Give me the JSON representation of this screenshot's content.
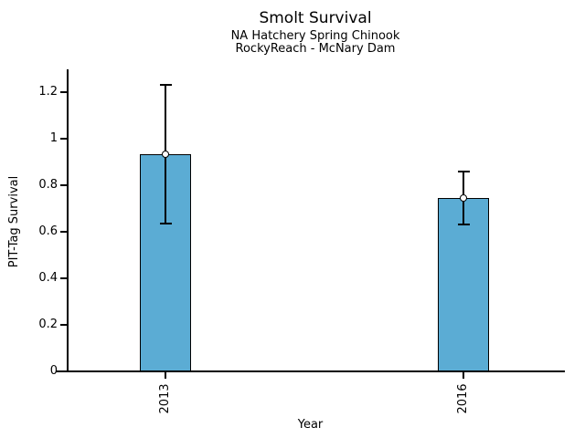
{
  "chart_data": {
    "type": "bar",
    "title": "Smolt Survival",
    "subtitle1": "NA Hatchery Spring Chinook",
    "subtitle2": "RockyReach - McNary Dam",
    "xlabel": "Year",
    "ylabel": "PIT-Tag Survival",
    "categories": [
      "2013",
      "2016"
    ],
    "values": [
      0.935,
      0.745
    ],
    "error_bars": [
      {
        "low": 0.635,
        "high": 1.23
      },
      {
        "low": 0.63,
        "high": 0.86
      }
    ],
    "yticks": [
      0,
      0.2,
      0.4,
      0.6,
      0.8,
      1,
      1.2
    ],
    "ytick_labels": [
      "0",
      "0.2",
      "0.4",
      "0.6",
      "0.8",
      "1",
      "1.2"
    ],
    "ylim": [
      0,
      1.3
    ],
    "bar_color": "#5BACD4",
    "bar_edge_color": "#000000",
    "marker": "open-circle",
    "grid": false,
    "legend": null
  }
}
